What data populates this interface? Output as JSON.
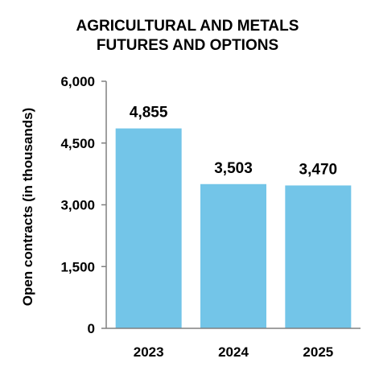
{
  "chart_data": {
    "type": "bar",
    "title_lines": [
      "AGRICULTURAL AND METALS",
      "FUTURES AND OPTIONS"
    ],
    "xlabel": "",
    "ylabel": "Open contracts (in thousands)",
    "categories": [
      "2023",
      "2024",
      "2025"
    ],
    "values": [
      4855,
      3503,
      3470
    ],
    "data_labels": [
      "4,855",
      "3,503",
      "3,470"
    ],
    "ylim": [
      0,
      6000
    ],
    "yticks": [
      0,
      1500,
      3000,
      4500,
      6000
    ],
    "ytick_labels": [
      "0",
      "1,500",
      "3,000",
      "4,500",
      "6,000"
    ],
    "grid": false,
    "legend": "none",
    "bar_color": "#73C5E8"
  }
}
